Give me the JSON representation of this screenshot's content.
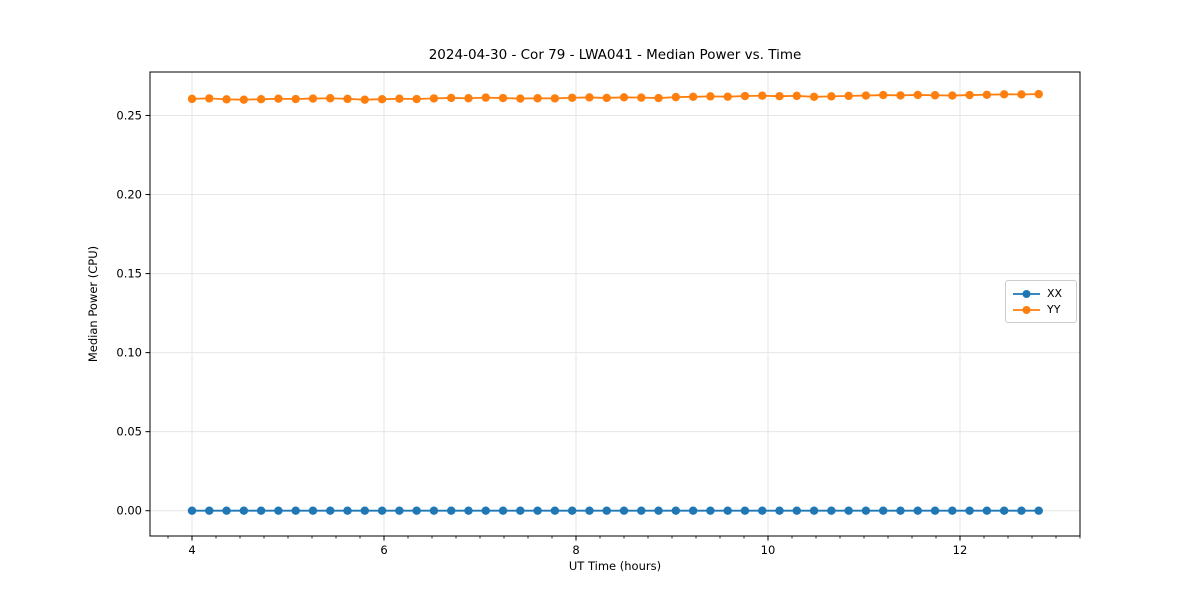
{
  "chart_data": {
    "type": "line",
    "title": "2024-04-30 - Cor 79 - LWA041 - Median Power vs. Time",
    "xlabel": "UT Time (hours)",
    "ylabel": "Median Power (CPU)",
    "xlim": [
      3.5625,
      13.25
    ],
    "ylim": [
      -0.016,
      0.2775
    ],
    "xticks": [
      4,
      6,
      8,
      10,
      12
    ],
    "x_minor_step": 0.25,
    "yticks": [
      0.0,
      0.05,
      0.1,
      0.15,
      0.2,
      0.25
    ],
    "grid": true,
    "legend_position": "center right",
    "x": [
      4.0,
      4.18,
      4.36,
      4.54,
      4.72,
      4.9,
      5.08,
      5.26,
      5.44,
      5.62,
      5.8,
      5.98,
      6.16,
      6.34,
      6.52,
      6.7,
      6.88,
      7.06,
      7.24,
      7.42,
      7.6,
      7.78,
      7.96,
      8.14,
      8.32,
      8.5,
      8.68,
      8.86,
      9.04,
      9.22,
      9.4,
      9.58,
      9.76,
      9.94,
      10.12,
      10.3,
      10.48,
      10.66,
      10.84,
      11.02,
      11.2,
      11.38,
      11.56,
      11.74,
      11.92,
      12.1,
      12.28,
      12.46,
      12.64,
      12.82
    ],
    "series": [
      {
        "name": "XX",
        "color": "#1f77b4",
        "values": [
          0.0,
          0.0,
          0.0,
          0.0,
          0.0,
          0.0,
          0.0,
          0.0,
          0.0,
          0.0,
          0.0,
          0.0,
          0.0,
          0.0,
          0.0,
          0.0,
          0.0,
          0.0,
          0.0,
          0.0,
          0.0,
          0.0,
          0.0,
          0.0,
          0.0,
          0.0,
          0.0,
          0.0,
          0.0,
          0.0,
          0.0,
          0.0,
          0.0,
          0.0,
          0.0,
          0.0,
          0.0,
          0.0,
          0.0,
          0.0,
          0.0,
          0.0,
          0.0,
          0.0,
          0.0,
          0.0,
          0.0,
          0.0,
          0.0,
          0.0
        ]
      },
      {
        "name": "YY",
        "color": "#ff7f0e",
        "values": [
          0.2605,
          0.2608,
          0.2602,
          0.26,
          0.2603,
          0.2606,
          0.2604,
          0.2607,
          0.2609,
          0.2605,
          0.26,
          0.2603,
          0.2606,
          0.2604,
          0.2608,
          0.2611,
          0.2609,
          0.2613,
          0.261,
          0.2607,
          0.2609,
          0.2608,
          0.2612,
          0.2614,
          0.2611,
          0.2615,
          0.2613,
          0.261,
          0.2616,
          0.2618,
          0.2621,
          0.2619,
          0.2623,
          0.2625,
          0.2622,
          0.2624,
          0.2618,
          0.2621,
          0.2624,
          0.2626,
          0.2629,
          0.2627,
          0.263,
          0.2628,
          0.2626,
          0.2629,
          0.2631,
          0.2634,
          0.2633,
          0.2635
        ]
      }
    ],
    "style": {
      "grid_color": "#e6e6e6",
      "spine_color": "#000000",
      "tick_label_color": "#000000",
      "marker_radius": 4.2,
      "line_width": 1.8
    }
  }
}
